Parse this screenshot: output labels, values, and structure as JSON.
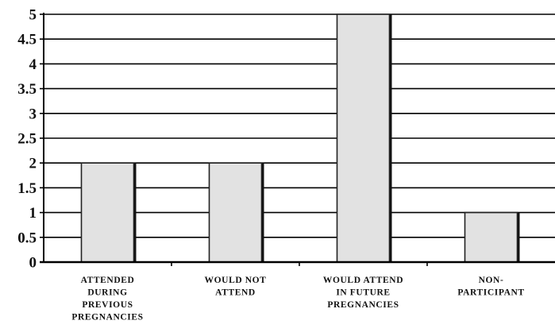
{
  "chart_data": {
    "type": "bar",
    "categories": [
      [
        "ATTENDED",
        "DURING",
        "PREVIOUS",
        "PREGNANCIES"
      ],
      [
        "WOULD NOT",
        "ATTEND"
      ],
      [
        "WOULD ATTEND",
        "IN FUTURE",
        "PREGNANCIES"
      ],
      [
        "NON-",
        "PARTICIPANT"
      ]
    ],
    "values": [
      2,
      2,
      5,
      1
    ],
    "yticks": [
      "0",
      "0.5",
      "1",
      "1.5",
      "2",
      "2.5",
      "3",
      "3.5",
      "4",
      "4.5",
      "5"
    ],
    "ylim": [
      0,
      5
    ],
    "grid": true,
    "legend": false,
    "colors": {
      "bar_fill": "#e2e2e2",
      "bar_edge": "#222222",
      "bar_shadow": "#111111",
      "grid": "#000000",
      "text": "#111111"
    }
  }
}
